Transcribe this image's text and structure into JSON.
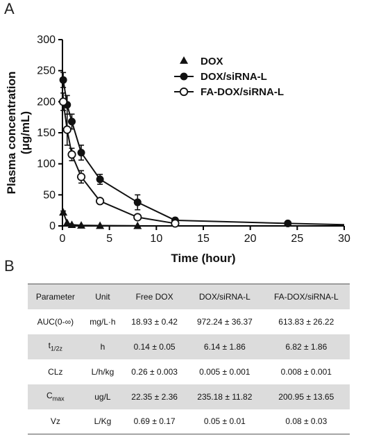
{
  "panels": {
    "a": "A",
    "b": "B"
  },
  "chart_data": {
    "type": "line",
    "xlabel": "Time (hour)",
    "ylabel_line1": "Plasma concentration",
    "ylabel_line2": "(μg/mL)",
    "xlim": [
      0,
      30
    ],
    "ylim": [
      0,
      300
    ],
    "xticks": [
      0,
      5,
      10,
      15,
      20,
      25,
      30
    ],
    "yticks": [
      0,
      50,
      100,
      150,
      200,
      250,
      300
    ],
    "legend_position": "top-right",
    "series": [
      {
        "name": "DOX",
        "marker": "filled-triangle",
        "x": [
          0.083,
          0.5,
          1,
          2,
          4,
          8
        ],
        "y": [
          22,
          5,
          2,
          1,
          0.5,
          0.3
        ],
        "err": [
          2,
          0,
          0,
          0,
          0,
          0
        ]
      },
      {
        "name": "DOX/siRNA-L",
        "marker": "filled-circle",
        "x": [
          0.083,
          0.5,
          1,
          2,
          4,
          8,
          12,
          24
        ],
        "y": [
          235,
          195,
          168,
          118,
          75,
          38,
          9,
          4
        ],
        "err": [
          12,
          15,
          12,
          12,
          8,
          12,
          3,
          1
        ]
      },
      {
        "name": "FA-DOX/siRNA-L",
        "marker": "open-circle",
        "x": [
          0.083,
          0.5,
          1,
          2,
          4,
          8,
          12
        ],
        "y": [
          200,
          155,
          115,
          79,
          40,
          14,
          4
        ],
        "err": [
          14,
          25,
          10,
          10,
          2,
          2,
          1
        ]
      }
    ],
    "tail": {
      "x": 30,
      "y": 2
    }
  },
  "table": {
    "headers": [
      "Parameter",
      "Unit",
      "Free DOX",
      "DOX/siRNA-L",
      "FA-DOX/siRNA-L"
    ],
    "rows": [
      {
        "param": "AUC(0-∞)",
        "sub": "",
        "unit": "mg/L·h",
        "values": [
          "18.93 ± 0.42",
          "972.24 ± 36.37",
          "613.83 ± 26.22"
        ]
      },
      {
        "param": "t",
        "sub": "1/2z",
        "unit": "h",
        "values": [
          "0.14 ± 0.05",
          "6.14 ± 1.86",
          "6.82 ± 1.86"
        ]
      },
      {
        "param": "CLz",
        "sub": "",
        "unit": "L/h/kg",
        "values": [
          "0.26 ± 0.003",
          "0.005 ± 0.001",
          "0.008 ± 0.001"
        ]
      },
      {
        "param": "C",
        "sub": "max",
        "unit": "ug/L",
        "values": [
          "22.35 ± 2.36",
          "235.18 ± 11.82",
          "200.95 ± 13.65"
        ]
      },
      {
        "param": "Vz",
        "sub": "",
        "unit": "L/Kg",
        "values": [
          "0.69 ± 0.17",
          "0.05 ± 0.01",
          "0.08 ± 0.03"
        ]
      }
    ]
  }
}
